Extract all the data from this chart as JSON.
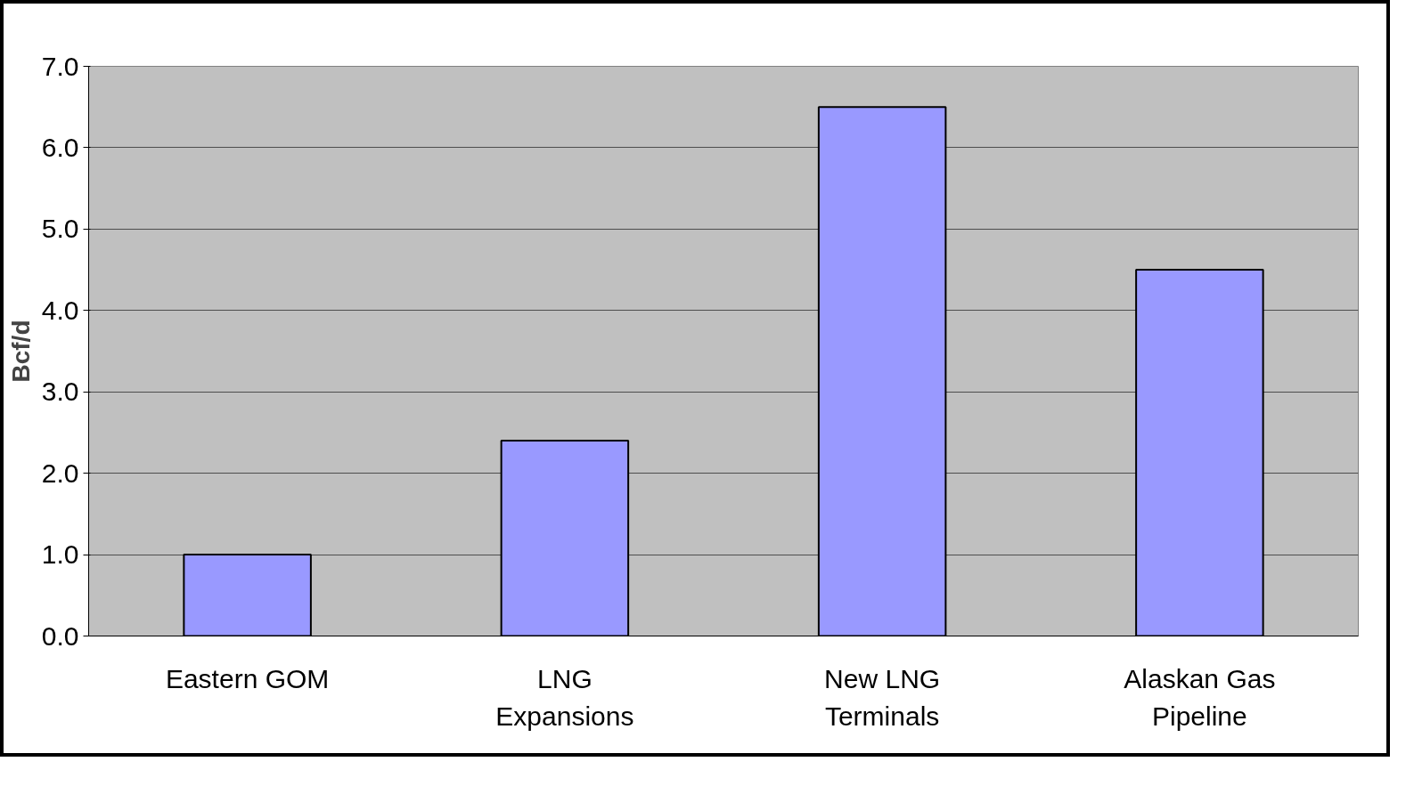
{
  "chart_data": {
    "type": "bar",
    "ylabel": "Bcf/d",
    "categories": [
      "Eastern GOM",
      "LNG Expansions",
      "New LNG Terminals",
      "Alaskan Gas Pipeline"
    ],
    "values": [
      1.0,
      2.4,
      6.5,
      4.5
    ],
    "color": "#9999ff",
    "ylim": [
      0,
      7
    ],
    "yticks": [
      {
        "value": 0,
        "label": "0.0"
      },
      {
        "value": 1,
        "label": "1.0"
      },
      {
        "value": 2,
        "label": "2.0"
      },
      {
        "value": 3,
        "label": "3.0"
      },
      {
        "value": 4,
        "label": "4.0"
      },
      {
        "value": 5,
        "label": "5.0"
      },
      {
        "value": 6,
        "label": "6.0"
      },
      {
        "value": 7,
        "label": "7.0"
      }
    ],
    "grid": "y"
  }
}
